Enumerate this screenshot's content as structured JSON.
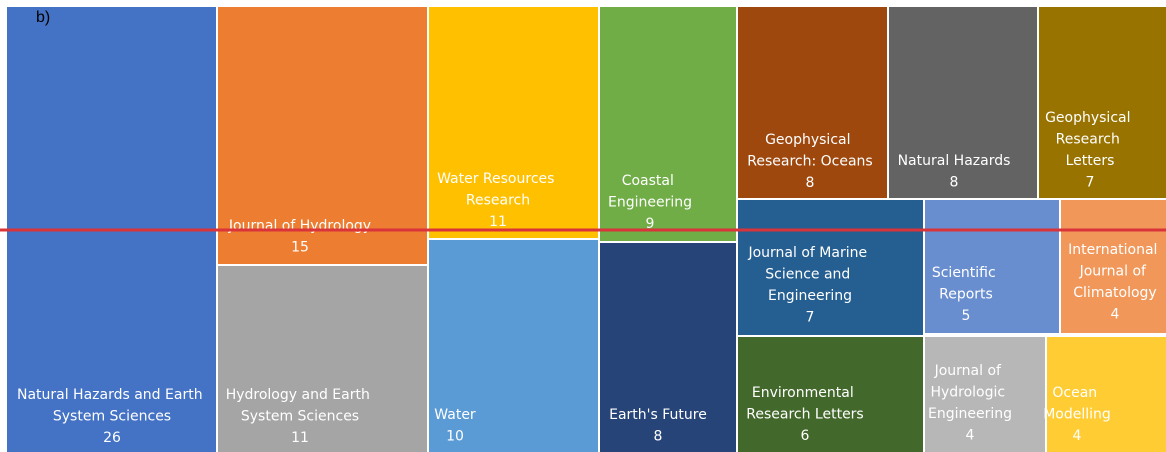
{
  "chart_data": {
    "type": "treemap",
    "title": "b)",
    "items": [
      {
        "name": "Natural Hazards and Earth System Sciences",
        "value": 26,
        "color": "#4472c4"
      },
      {
        "name": "Journal of Hydrology",
        "value": 15,
        "color": "#ed7d31"
      },
      {
        "name": "Hydrology and Earth System Sciences",
        "value": 11,
        "color": "#a5a5a5"
      },
      {
        "name": "Water Resources Research",
        "value": 11,
        "color": "#ffc000"
      },
      {
        "name": "Water",
        "value": 10,
        "color": "#5b9bd5"
      },
      {
        "name": "Coastal Engineering",
        "value": 9,
        "color": "#70ad47"
      },
      {
        "name": "Earth's Future",
        "value": 8,
        "color": "#264478"
      },
      {
        "name": "Geophysical Research: Oceans",
        "value": 8,
        "color": "#9e480e"
      },
      {
        "name": "Natural Hazards",
        "value": 8,
        "color": "#636363"
      },
      {
        "name": "Geophysical Research Letters",
        "value": 7,
        "color": "#997300"
      },
      {
        "name": "Journal of Marine Science and Engineering",
        "value": 7,
        "color": "#255e91"
      },
      {
        "name": "Scientific Reports",
        "value": 5,
        "color": "#698ed0"
      },
      {
        "name": "International Journal of Climatology",
        "value": 4,
        "color": "#f1975a"
      },
      {
        "name": "Environmental Research Letters",
        "value": 6,
        "color": "#43682b"
      },
      {
        "name": "Journal of Hydrologic Engineering",
        "value": 4,
        "color": "#b7b7b7"
      },
      {
        "name": "Ocean Modelling",
        "value": 4,
        "color": "#ffcd33"
      }
    ]
  }
}
